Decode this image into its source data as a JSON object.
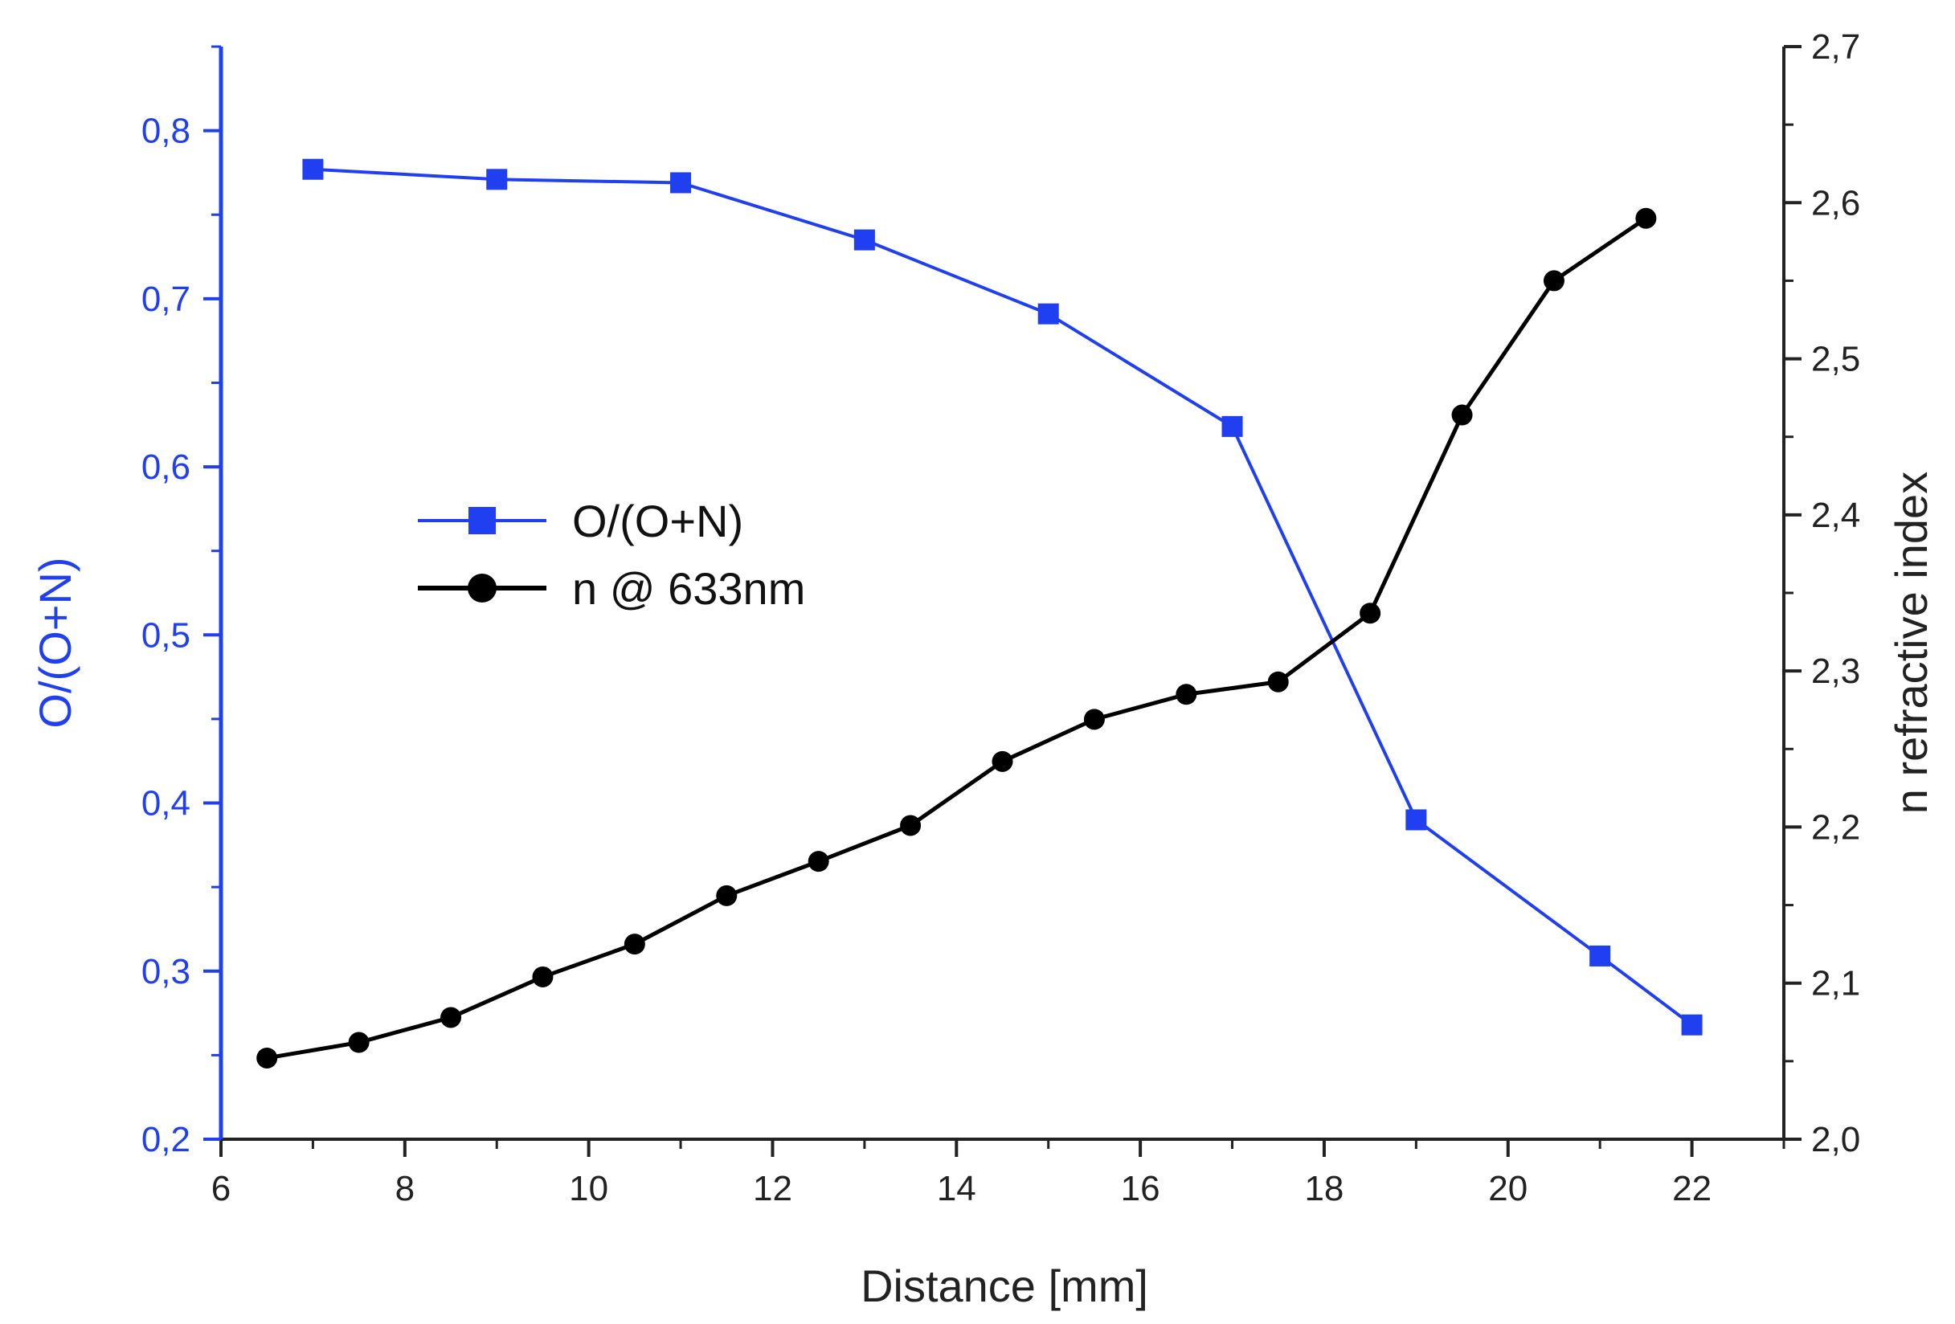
{
  "chart_data": {
    "type": "line",
    "title": "",
    "xlabel": "Distance [mm]",
    "ylabel_left": "O/(O+N)",
    "ylabel_right": "n refractive index",
    "xlim": [
      6,
      23
    ],
    "ylim_left": [
      0.2,
      0.85
    ],
    "ylim_right": [
      2.0,
      2.7
    ],
    "x_ticks": [
      6,
      8,
      10,
      12,
      14,
      16,
      18,
      20,
      22
    ],
    "x_tick_labels": [
      "6",
      "8",
      "10",
      "12",
      "14",
      "16",
      "18",
      "20",
      "22"
    ],
    "y_left_ticks": [
      0.2,
      0.3,
      0.4,
      0.5,
      0.6,
      0.7,
      0.8
    ],
    "y_left_tick_labels": [
      "0,2",
      "0,3",
      "0,4",
      "0,5",
      "0,6",
      "0,7",
      "0,8"
    ],
    "y_right_ticks": [
      2.0,
      2.1,
      2.2,
      2.3,
      2.4,
      2.5,
      2.6,
      2.7
    ],
    "y_right_tick_labels": [
      "2,0",
      "2,1",
      "2,2",
      "2,3",
      "2,4",
      "2,5",
      "2,6",
      "2,7"
    ],
    "grid": false,
    "legend_position": "center-left",
    "series": [
      {
        "name": "O/(O+N)",
        "axis": "left",
        "marker": "square",
        "color": "#1f3ff0",
        "x": [
          7,
          9,
          11,
          13,
          15,
          17,
          19,
          21,
          22
        ],
        "y": [
          0.777,
          0.771,
          0.769,
          0.735,
          0.691,
          0.624,
          0.39,
          0.309,
          0.268
        ]
      },
      {
        "name": "n @ 633nm",
        "axis": "right",
        "marker": "circle",
        "color": "#000000",
        "x": [
          6.5,
          7.5,
          8.5,
          9.5,
          10.5,
          11.5,
          12.5,
          13.5,
          14.5,
          15.5,
          16.5,
          17.5,
          18.5,
          19.5,
          20.5,
          21.5
        ],
        "y": [
          2.052,
          2.062,
          2.078,
          2.104,
          2.125,
          2.156,
          2.178,
          2.201,
          2.242,
          2.269,
          2.285,
          2.293,
          2.337,
          2.464,
          2.55,
          2.59
        ]
      }
    ]
  }
}
